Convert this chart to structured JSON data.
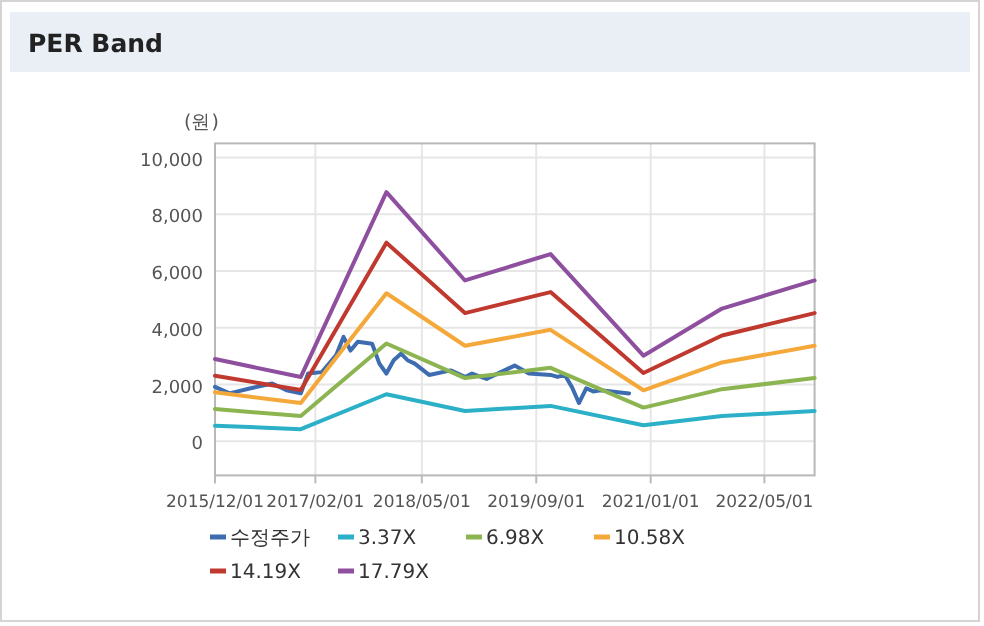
{
  "chart_data": {
    "type": "line",
    "title": "PER Band",
    "ylabel": "(원)",
    "legend": "bottom",
    "grid": true,
    "marker": "none",
    "line_style": "solid",
    "xlim": [
      "2015-12-01",
      "2022-12-01"
    ],
    "xticks": [
      {
        "value": "2015-12-01",
        "label": "2015/12/01"
      },
      {
        "value": "2017-02-01",
        "label": "2017/02/01"
      },
      {
        "value": "2018-05-01",
        "label": "2018/05/01"
      },
      {
        "value": "2019-09-01",
        "label": "2019/09/01"
      },
      {
        "value": "2021-01-01",
        "label": "2021/01/01"
      },
      {
        "value": "2022-05-01",
        "label": "2022/05/01"
      }
    ],
    "ylim": [
      -1200,
      10500
    ],
    "yticks": [
      {
        "value": 0,
        "label": "0"
      },
      {
        "value": 2000,
        "label": "2,000"
      },
      {
        "value": 4000,
        "label": "4,000"
      },
      {
        "value": 6000,
        "label": "6,000"
      },
      {
        "value": 8000,
        "label": "8,000"
      },
      {
        "value": 10000,
        "label": "10,000"
      }
    ],
    "series": [
      {
        "name": "수정주가",
        "color": "#3d6cb0",
        "x": [
          "2015-12-01",
          "2016-02-01",
          "2016-05-01",
          "2016-08-01",
          "2016-10-01",
          "2016-12-01",
          "2017-01-01",
          "2017-03-01",
          "2017-05-01",
          "2017-06-01",
          "2017-07-01",
          "2017-08-01",
          "2017-10-01",
          "2017-11-01",
          "2017-12-01",
          "2018-01-01",
          "2018-02-01",
          "2018-03-01",
          "2018-04-01",
          "2018-06-01",
          "2018-07-01",
          "2018-09-01",
          "2018-11-01",
          "2018-12-01",
          "2019-02-01",
          "2019-06-01",
          "2019-08-01",
          "2019-11-01",
          "2019-12-01",
          "2020-01-01",
          "2020-02-01",
          "2020-03-01",
          "2020-04-01",
          "2020-05-01",
          "2020-06-01",
          "2020-10-01"
        ],
        "values": [
          1920,
          1690,
          1870,
          2040,
          1800,
          1690,
          2390,
          2440,
          3040,
          3680,
          3200,
          3510,
          3440,
          2740,
          2390,
          2860,
          3090,
          2860,
          2740,
          2340,
          2390,
          2500,
          2270,
          2390,
          2200,
          2670,
          2390,
          2340,
          2270,
          2340,
          1900,
          1350,
          1870,
          1760,
          1800,
          1690
        ]
      },
      {
        "name": "3.37X",
        "color": "#2bb0c8",
        "x": [
          "2015-12-01",
          "2016-12-01",
          "2017-12-01",
          "2018-11-01",
          "2019-11-01",
          "2020-12-01",
          "2021-11-01",
          "2022-12-01"
        ],
        "values": [
          550,
          430,
          1660,
          1070,
          1250,
          570,
          890,
          1070
        ]
      },
      {
        "name": "6.98X",
        "color": "#8cb450",
        "x": [
          "2015-12-01",
          "2016-12-01",
          "2017-12-01",
          "2018-11-01",
          "2019-11-01",
          "2020-12-01",
          "2021-11-01",
          "2022-12-01"
        ],
        "values": [
          1140,
          890,
          3450,
          2230,
          2590,
          1190,
          1840,
          2230
        ]
      },
      {
        "name": "10.58X",
        "color": "#f5a83a",
        "x": [
          "2015-12-01",
          "2016-12-01",
          "2017-12-01",
          "2018-11-01",
          "2019-11-01",
          "2020-12-01",
          "2021-11-01",
          "2022-12-01"
        ],
        "values": [
          1730,
          1350,
          5220,
          3370,
          3930,
          1800,
          2780,
          3370
        ]
      },
      {
        "name": "14.19X",
        "color": "#c0392f",
        "x": [
          "2015-12-01",
          "2016-12-01",
          "2017-12-01",
          "2018-11-01",
          "2019-11-01",
          "2020-12-01",
          "2021-11-01",
          "2022-12-01"
        ],
        "values": [
          2310,
          1810,
          7000,
          4520,
          5260,
          2410,
          3730,
          4520
        ]
      },
      {
        "name": "17.79X",
        "color": "#8e4f9e",
        "x": [
          "2015-12-01",
          "2016-12-01",
          "2017-12-01",
          "2018-11-01",
          "2019-11-01",
          "2020-12-01",
          "2021-11-01",
          "2022-12-01"
        ],
        "values": [
          2900,
          2270,
          8780,
          5670,
          6600,
          3020,
          4680,
          5670
        ]
      }
    ]
  }
}
